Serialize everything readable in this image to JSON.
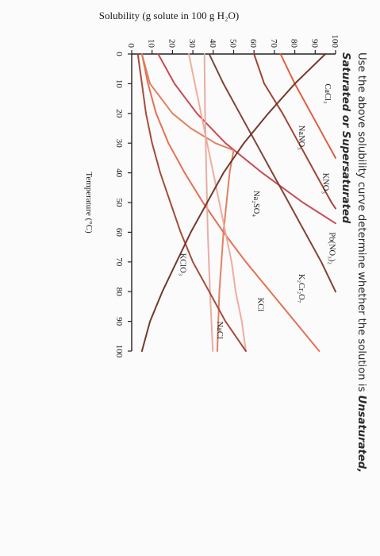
{
  "chart_data": {
    "type": "line",
    "ylabel": "Solubility (g solute in 100 g H₂O)",
    "xlabel": "Temperature (°C)",
    "xlim": [
      0,
      100
    ],
    "ylim": [
      0,
      100
    ],
    "x_ticks": [
      "0",
      "10",
      "20",
      "30",
      "40",
      "50",
      "60",
      "70",
      "80",
      "90",
      "100"
    ],
    "y_ticks": [
      "0",
      "10",
      "20",
      "30",
      "40",
      "50",
      "60",
      "70",
      "80",
      "90",
      "100"
    ],
    "grid": false,
    "series": [
      {
        "name": "CaCl₂",
        "color": "#9c3a2a",
        "label_at": [
          10,
          95
        ],
        "points": [
          [
            0,
            60
          ],
          [
            10,
            65
          ],
          [
            20,
            74
          ],
          [
            30,
            82
          ],
          [
            40,
            90
          ],
          [
            50,
            98
          ],
          [
            52,
            100
          ]
        ]
      },
      {
        "name": "NaNO₃",
        "color": "#e05534",
        "label_at": [
          24,
          82
        ],
        "points": [
          [
            0,
            73
          ],
          [
            10,
            80
          ],
          [
            20,
            88
          ],
          [
            30,
            96
          ],
          [
            35,
            100
          ]
        ]
      },
      {
        "name": "KNO₃",
        "color": "#c8404c",
        "label_at": [
          40,
          94
        ],
        "points": [
          [
            0,
            13
          ],
          [
            10,
            21
          ],
          [
            20,
            32
          ],
          [
            30,
            46
          ],
          [
            40,
            64
          ],
          [
            50,
            84
          ],
          [
            57,
            100
          ]
        ]
      },
      {
        "name": "Pb(NO₃)₂",
        "color": "#7a3a2a",
        "label_at": [
          60,
          97
        ],
        "points": [
          [
            0,
            38
          ],
          [
            10,
            45
          ],
          [
            20,
            53
          ],
          [
            30,
            61
          ],
          [
            40,
            69
          ],
          [
            50,
            77
          ],
          [
            60,
            85
          ],
          [
            70,
            93
          ],
          [
            80,
            100
          ]
        ]
      },
      {
        "name": "K₂Cr₂O₇",
        "color": "#e4684a",
        "label_at": [
          74,
          82
        ],
        "points": [
          [
            0,
            5
          ],
          [
            10,
            8
          ],
          [
            20,
            12
          ],
          [
            30,
            18
          ],
          [
            40,
            26
          ],
          [
            50,
            35
          ],
          [
            60,
            45
          ],
          [
            70,
            56
          ],
          [
            80,
            68
          ],
          [
            90,
            80
          ],
          [
            100,
            92
          ]
        ]
      },
      {
        "name": "Na₂SO₄",
        "color": "#e07a5a",
        "label_at": [
          46,
          60
        ],
        "points": [
          [
            0,
            5
          ],
          [
            10,
            9
          ],
          [
            20,
            20
          ],
          [
            25,
            29
          ],
          [
            30,
            41
          ],
          [
            32.4,
            50
          ],
          [
            40,
            48
          ],
          [
            60,
            45
          ],
          [
            80,
            43
          ],
          [
            100,
            42
          ]
        ]
      },
      {
        "name": "KCl",
        "color": "#f0a898",
        "label_at": [
          82,
          62
        ],
        "points": [
          [
            0,
            28
          ],
          [
            10,
            31
          ],
          [
            20,
            34
          ],
          [
            30,
            37
          ],
          [
            40,
            40
          ],
          [
            50,
            43
          ],
          [
            60,
            46
          ],
          [
            70,
            49
          ],
          [
            80,
            51
          ],
          [
            90,
            54
          ],
          [
            100,
            56
          ]
        ]
      },
      {
        "name": "NaCl",
        "color": "#e8a8a0",
        "label_at": [
          90,
          42
        ],
        "points": [
          [
            0,
            35.7
          ],
          [
            20,
            36
          ],
          [
            40,
            36.6
          ],
          [
            60,
            37.3
          ],
          [
            80,
            38.4
          ],
          [
            100,
            39.8
          ]
        ]
      },
      {
        "name": "KClO₃",
        "color": "#a04230",
        "label_at": [
          67,
          24
        ],
        "points": [
          [
            0,
            3
          ],
          [
            10,
            5
          ],
          [
            20,
            7
          ],
          [
            30,
            10
          ],
          [
            40,
            14
          ],
          [
            50,
            19
          ],
          [
            60,
            24
          ],
          [
            70,
            30
          ],
          [
            80,
            38
          ],
          [
            90,
            46
          ],
          [
            100,
            56
          ]
        ]
      },
      {
        "name": "",
        "color": "#6e2e22",
        "points": [
          [
            0,
            95
          ],
          [
            10,
            80
          ],
          [
            20,
            67
          ],
          [
            30,
            55
          ],
          [
            40,
            45
          ],
          [
            50,
            37
          ],
          [
            60,
            29
          ],
          [
            70,
            22
          ],
          [
            80,
            15
          ],
          [
            90,
            9
          ],
          [
            100,
            5
          ]
        ]
      }
    ]
  },
  "question": {
    "line1_prefix": "Use the above solubility curve determine whether the solution is ",
    "line1_term": "Unsaturated,",
    "line2": "Saturated or Supersaturated"
  }
}
